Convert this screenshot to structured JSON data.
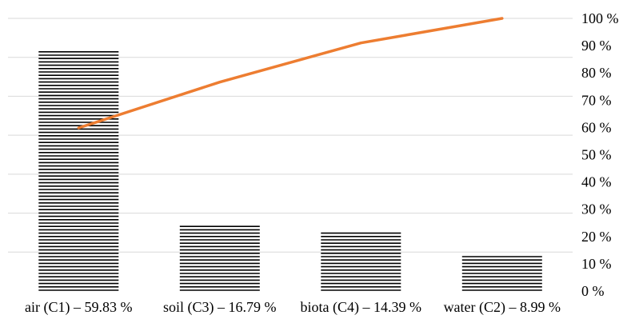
{
  "chart_data": {
    "type": "bar",
    "categories": [
      "air (C1) – 59.83 %",
      "soil (C3) – 16.79 %",
      "biota (C4) – 14.39 %",
      "water (C2) – 8.99 %"
    ],
    "series": [
      {
        "type": "bar",
        "values": [
          59.83,
          16.79,
          14.39,
          8.99
        ]
      },
      {
        "type": "line",
        "values": [
          59.83,
          76.62,
          91.01,
          100.0
        ]
      }
    ],
    "y_right": {
      "range": [
        0,
        100
      ],
      "ticks": [
        "0 %",
        "10 %",
        "20 %",
        "30 %",
        "40 %",
        "50 %",
        "60 %",
        "70 %",
        "80 %",
        "90 %",
        "100 %"
      ]
    },
    "bar_scale_max": 68,
    "grid": true,
    "legend": "none",
    "colors": {
      "bar": "#000000",
      "line": "#ed7d31",
      "grid": "#d9d9d9"
    }
  }
}
